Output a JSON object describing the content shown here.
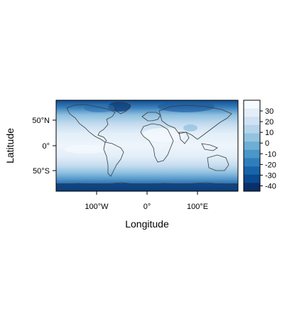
{
  "map": {
    "ylabel": "Latitude",
    "xlabel": "Longitude",
    "lat_ticks": [
      "50°N",
      "0°",
      "50°S"
    ],
    "lon_ticks": [
      "100°W",
      "0°",
      "100°E"
    ],
    "extent": {
      "lon": [
        -180,
        180
      ],
      "lat": [
        -90,
        90
      ]
    }
  },
  "colorbar": {
    "ticks": [
      "30",
      "20",
      "10",
      "0",
      "-10",
      "-20",
      "-30",
      "-40"
    ],
    "range": [
      -45,
      40
    ],
    "palette": [
      "#f7fbff",
      "#e3eef9",
      "#cfe1f2",
      "#b5d4e9",
      "#93c3df",
      "#6daed5",
      "#4b97c9",
      "#2f7ebc",
      "#1864aa",
      "#0a4a90",
      "#08306b"
    ]
  },
  "colors": {
    "coastline": "#3b3b3b",
    "frame": "#000000"
  }
}
